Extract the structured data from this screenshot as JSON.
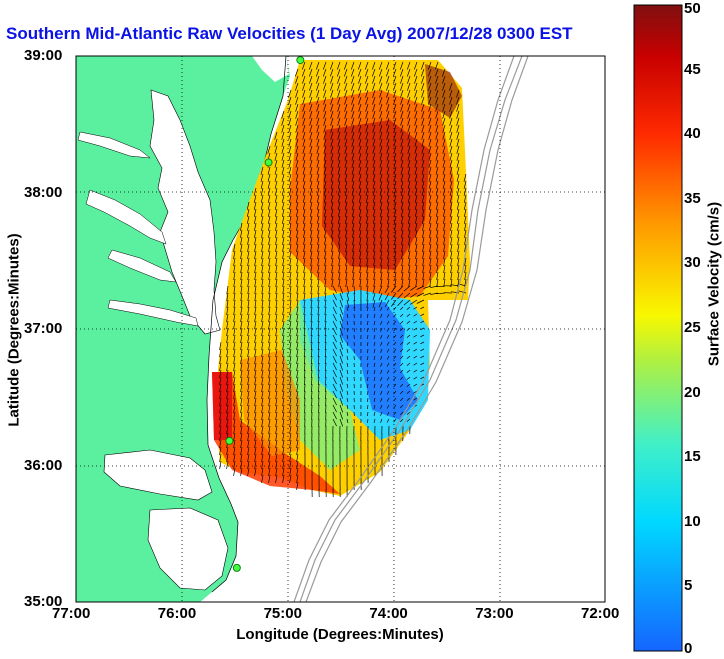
{
  "map": {
    "title": "Southern Mid-Atlantic Raw Velocities (1 Day Avg) 2007/12/28 0300 EST",
    "xlabel": "Longitude (Degrees:Minutes)",
    "ylabel": "Latitude (Degrees:Minutes)",
    "lon_range": [
      -77,
      -72
    ],
    "lat_range": [
      35,
      39
    ],
    "lon_ticks": [
      "77:00",
      "76:00",
      "75:00",
      "74:00",
      "73:00",
      "72:00"
    ],
    "lat_ticks": [
      "39:00",
      "38:00",
      "37:00",
      "36:00",
      "35:00"
    ],
    "land_color": "#5af0a0",
    "grid": true,
    "stations": [
      {
        "lon": -74.88,
        "lat": 38.97
      },
      {
        "lon": -75.18,
        "lat": 38.22
      },
      {
        "lon": -75.55,
        "lat": 36.18
      },
      {
        "lon": -75.48,
        "lat": 35.25
      }
    ]
  },
  "colorbar": {
    "label": "Surface Velocity (cm/s)",
    "min": 0,
    "max": 50,
    "ticks": [
      "0",
      "5",
      "10",
      "15",
      "20",
      "25",
      "30",
      "35",
      "40",
      "45",
      "50"
    ]
  }
}
